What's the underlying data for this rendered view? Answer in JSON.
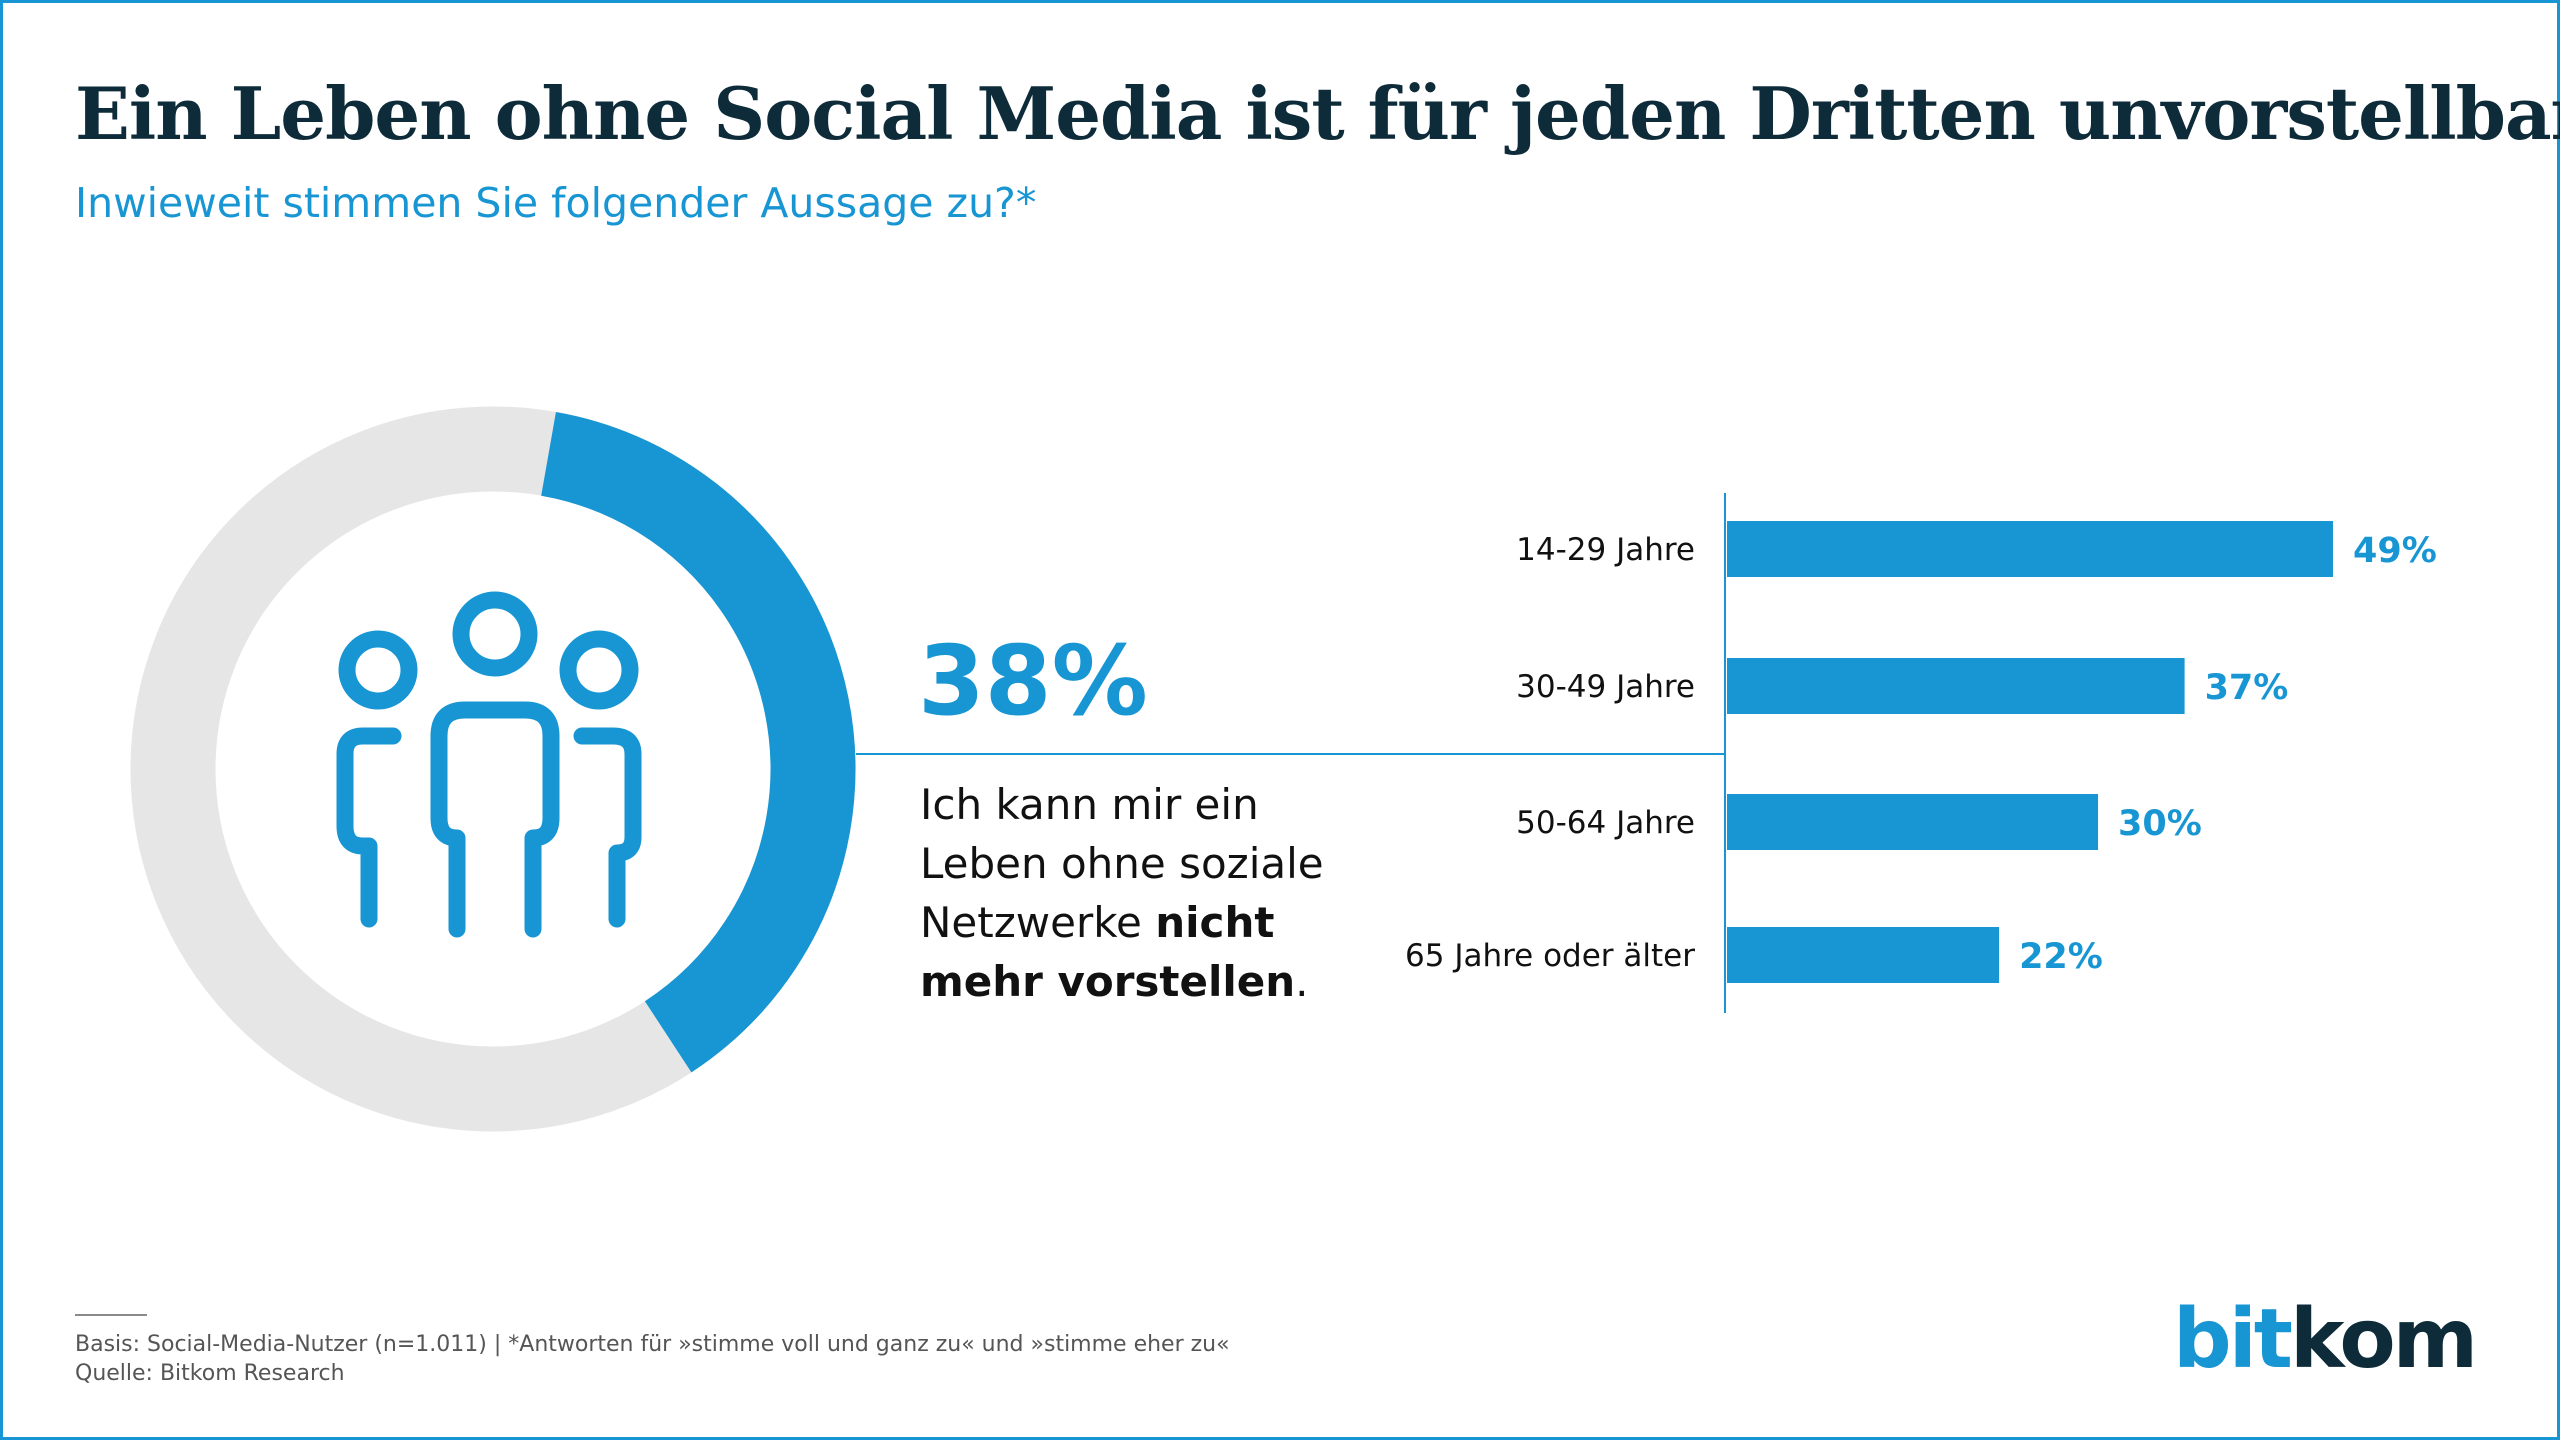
{
  "title": "Ein Leben ohne Social Media ist für jeden Dritten unvorstellbar",
  "subtitle": "Inwieweit stimmen Sie folgender Aussage zu?*",
  "highlight": {
    "percent_label": "38%",
    "statement_plain": "Ich kann mir ein Leben ohne soziale Netzwerke ",
    "statement_bold": "nicht mehr vorstellen",
    "statement_end": ".",
    "icon": "people-group-icon"
  },
  "chart_data": [
    {
      "type": "pie",
      "variant": "donut",
      "categories": [
        "Ich kann mir ein Leben ohne soziale Netzwerke nicht mehr vorstellen",
        "Rest"
      ],
      "values": [
        38,
        62
      ],
      "colors": [
        "#1896d3",
        "#e6e6e6"
      ],
      "center_label": "38%"
    },
    {
      "type": "bar",
      "orientation": "horizontal",
      "categories": [
        "14-29 Jahre",
        "30-49 Jahre",
        "50-64 Jahre",
        "65 Jahre oder älter"
      ],
      "values": [
        49,
        37,
        30,
        22
      ],
      "value_labels": [
        "49%",
        "37%",
        "30%",
        "22%"
      ],
      "xlim": [
        0,
        49
      ],
      "color": "#1896d3",
      "title": "",
      "xlabel": "",
      "ylabel": ""
    }
  ],
  "footer": {
    "basis": "Basis: Social-Media-Nutzer (n=1.011) | *Antworten für »stimme voll und ganz zu« und »stimme eher zu«",
    "source": "Quelle: Bitkom Research"
  },
  "logo": {
    "part1": "bit",
    "part2": "kom"
  },
  "colors": {
    "accent": "#1896d3",
    "dark": "#0e2b3a",
    "track": "#e6e6e6"
  }
}
